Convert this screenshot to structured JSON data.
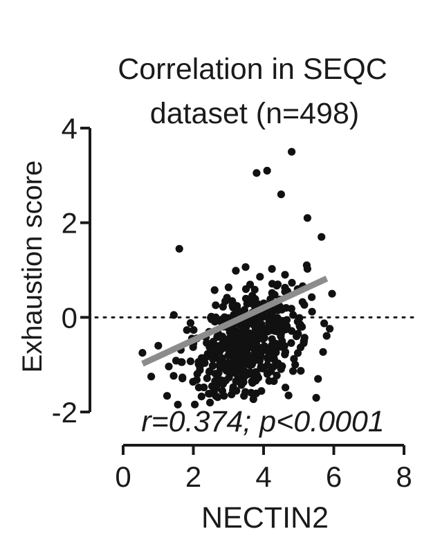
{
  "chart_data": {
    "type": "scatter",
    "title_lines": [
      "Correlation in SEQC",
      "dataset (n=498)"
    ],
    "xlabel": "NECTIN2",
    "ylabel": "Exhaustion score",
    "xlim": [
      0,
      8
    ],
    "ylim": [
      -2,
      4
    ],
    "xticks": [
      0,
      2,
      4,
      6,
      8
    ],
    "yticks": [
      -2,
      0,
      2,
      4
    ],
    "xtick_labels": [
      "0",
      "2",
      "4",
      "6",
      "8"
    ],
    "ytick_labels": [
      "-2",
      "0",
      "2",
      "4"
    ],
    "annotation": "r=0.374; p<0.0001",
    "reference_line_y": 0,
    "regression": {
      "x": [
        0.55,
        5.8
      ],
      "y": [
        -0.98,
        0.82
      ],
      "color": "#8c8c8c"
    },
    "point_color": "#111111",
    "n": 498,
    "points_visible_outliers": [
      {
        "x": 4.8,
        "y": 3.5
      },
      {
        "x": 3.8,
        "y": 3.05
      },
      {
        "x": 4.1,
        "y": 3.1
      },
      {
        "x": 4.5,
        "y": 2.6
      },
      {
        "x": 1.6,
        "y": 1.45
      },
      {
        "x": 0.55,
        "y": -0.75
      },
      {
        "x": 0.8,
        "y": -1.25
      },
      {
        "x": 1.0,
        "y": -0.6
      },
      {
        "x": 5.55,
        "y": -1.3
      },
      {
        "x": 5.5,
        "y": -1.7
      },
      {
        "x": 5.95,
        "y": 0.5
      },
      {
        "x": 5.65,
        "y": 1.7
      },
      {
        "x": 5.25,
        "y": 2.1
      },
      {
        "x": 4.9,
        "y": -1.0
      },
      {
        "x": 5.15,
        "y": -0.5
      }
    ]
  }
}
